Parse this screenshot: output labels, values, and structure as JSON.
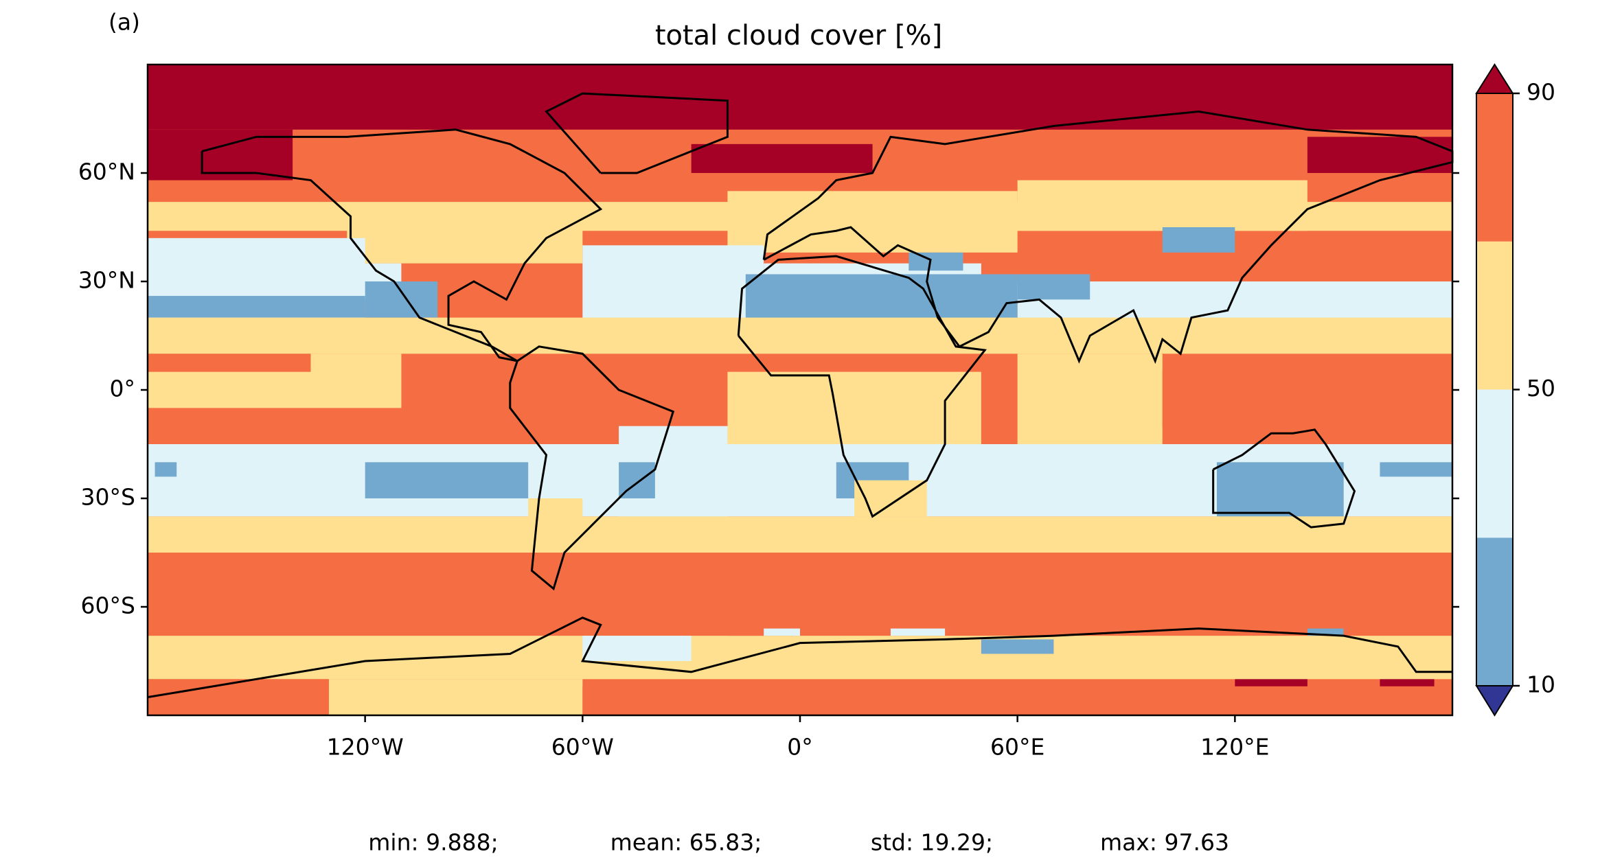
{
  "chart_data": {
    "type": "map",
    "panel_label": "(a)",
    "title": "total cloud cover [%]",
    "xlim": [
      -180,
      180
    ],
    "ylim": [
      -90,
      90
    ],
    "xticks": [
      {
        "value": -120,
        "label": "120°W"
      },
      {
        "value": -60,
        "label": "60°W"
      },
      {
        "value": 0,
        "label": "0°"
      },
      {
        "value": 60,
        "label": "60°E"
      },
      {
        "value": 120,
        "label": "120°E"
      }
    ],
    "yticks": [
      {
        "value": 60,
        "label": "60°N"
      },
      {
        "value": 30,
        "label": "30°N"
      },
      {
        "value": 0,
        "label": "0°"
      },
      {
        "value": -30,
        "label": "30°S"
      },
      {
        "value": -60,
        "label": "60°S"
      }
    ],
    "colorbar": {
      "levels": [
        10,
        30,
        50,
        70,
        90
      ],
      "ticks": [
        10,
        50,
        90
      ],
      "colors": [
        "#74a9cf",
        "#e0f3f8",
        "#fee090",
        "#f46d43"
      ],
      "under": "#313695",
      "over": "#a50026"
    },
    "stats": [
      "min: 9.888;",
      "mean: 65.83;",
      "std: 19.29;",
      "max: 97.63"
    ]
  }
}
